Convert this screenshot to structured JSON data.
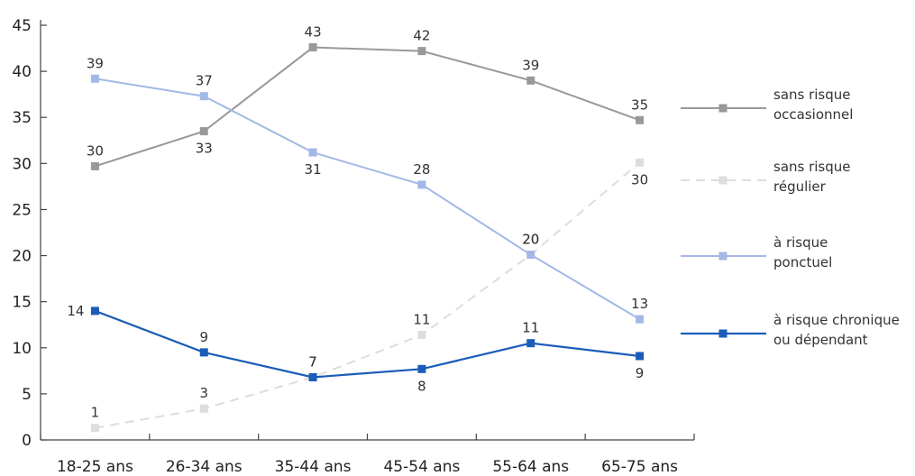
{
  "chart_data": {
    "type": "line",
    "categories": [
      "18-25 ans",
      "26-34 ans",
      "35-44 ans",
      "45-54 ans",
      "55-64 ans",
      "65-75 ans"
    ],
    "ylim": [
      0,
      45
    ],
    "yticks": [
      0,
      5,
      10,
      15,
      20,
      25,
      30,
      35,
      40,
      45
    ],
    "grid": false,
    "legend": "right",
    "series": [
      {
        "name": "sans risque occasionnel",
        "legend_lines": [
          "sans risque",
          "occasionnel"
        ],
        "values": [
          29.7,
          33.5,
          42.6,
          42.2,
          39,
          34.7
        ],
        "labels": [
          "30",
          "33",
          "43",
          "42",
          "39",
          "35"
        ],
        "color": "#999999",
        "dashed": false
      },
      {
        "name": "sans risque régulier",
        "legend_lines": [
          "sans risque",
          "régulier"
        ],
        "values": [
          1.3,
          3.4,
          6.8,
          11.4,
          20.1,
          30.1
        ],
        "labels": [
          "1",
          "3",
          "7",
          "11",
          "20",
          "30"
        ],
        "color": "#dddddd",
        "dashed": true
      },
      {
        "name": "à risque ponctuel",
        "legend_lines": [
          "à risque",
          "ponctuel"
        ],
        "values": [
          39.2,
          37.3,
          31.2,
          27.7,
          20.1,
          13.1
        ],
        "labels": [
          "39",
          "37",
          "31",
          "28",
          "20",
          "13"
        ],
        "color": "#a3b8e6",
        "dashed": false
      },
      {
        "name": "à risque chronique ou dépendant",
        "legend_lines": [
          "à risque chronique",
          "ou dépendant"
        ],
        "values": [
          14,
          9.5,
          6.8,
          7.7,
          10.5,
          9.1
        ],
        "labels": [
          "14",
          "9",
          "7",
          "8",
          "11",
          "9"
        ],
        "color": "#1a5cb8",
        "dashed": false
      }
    ]
  }
}
